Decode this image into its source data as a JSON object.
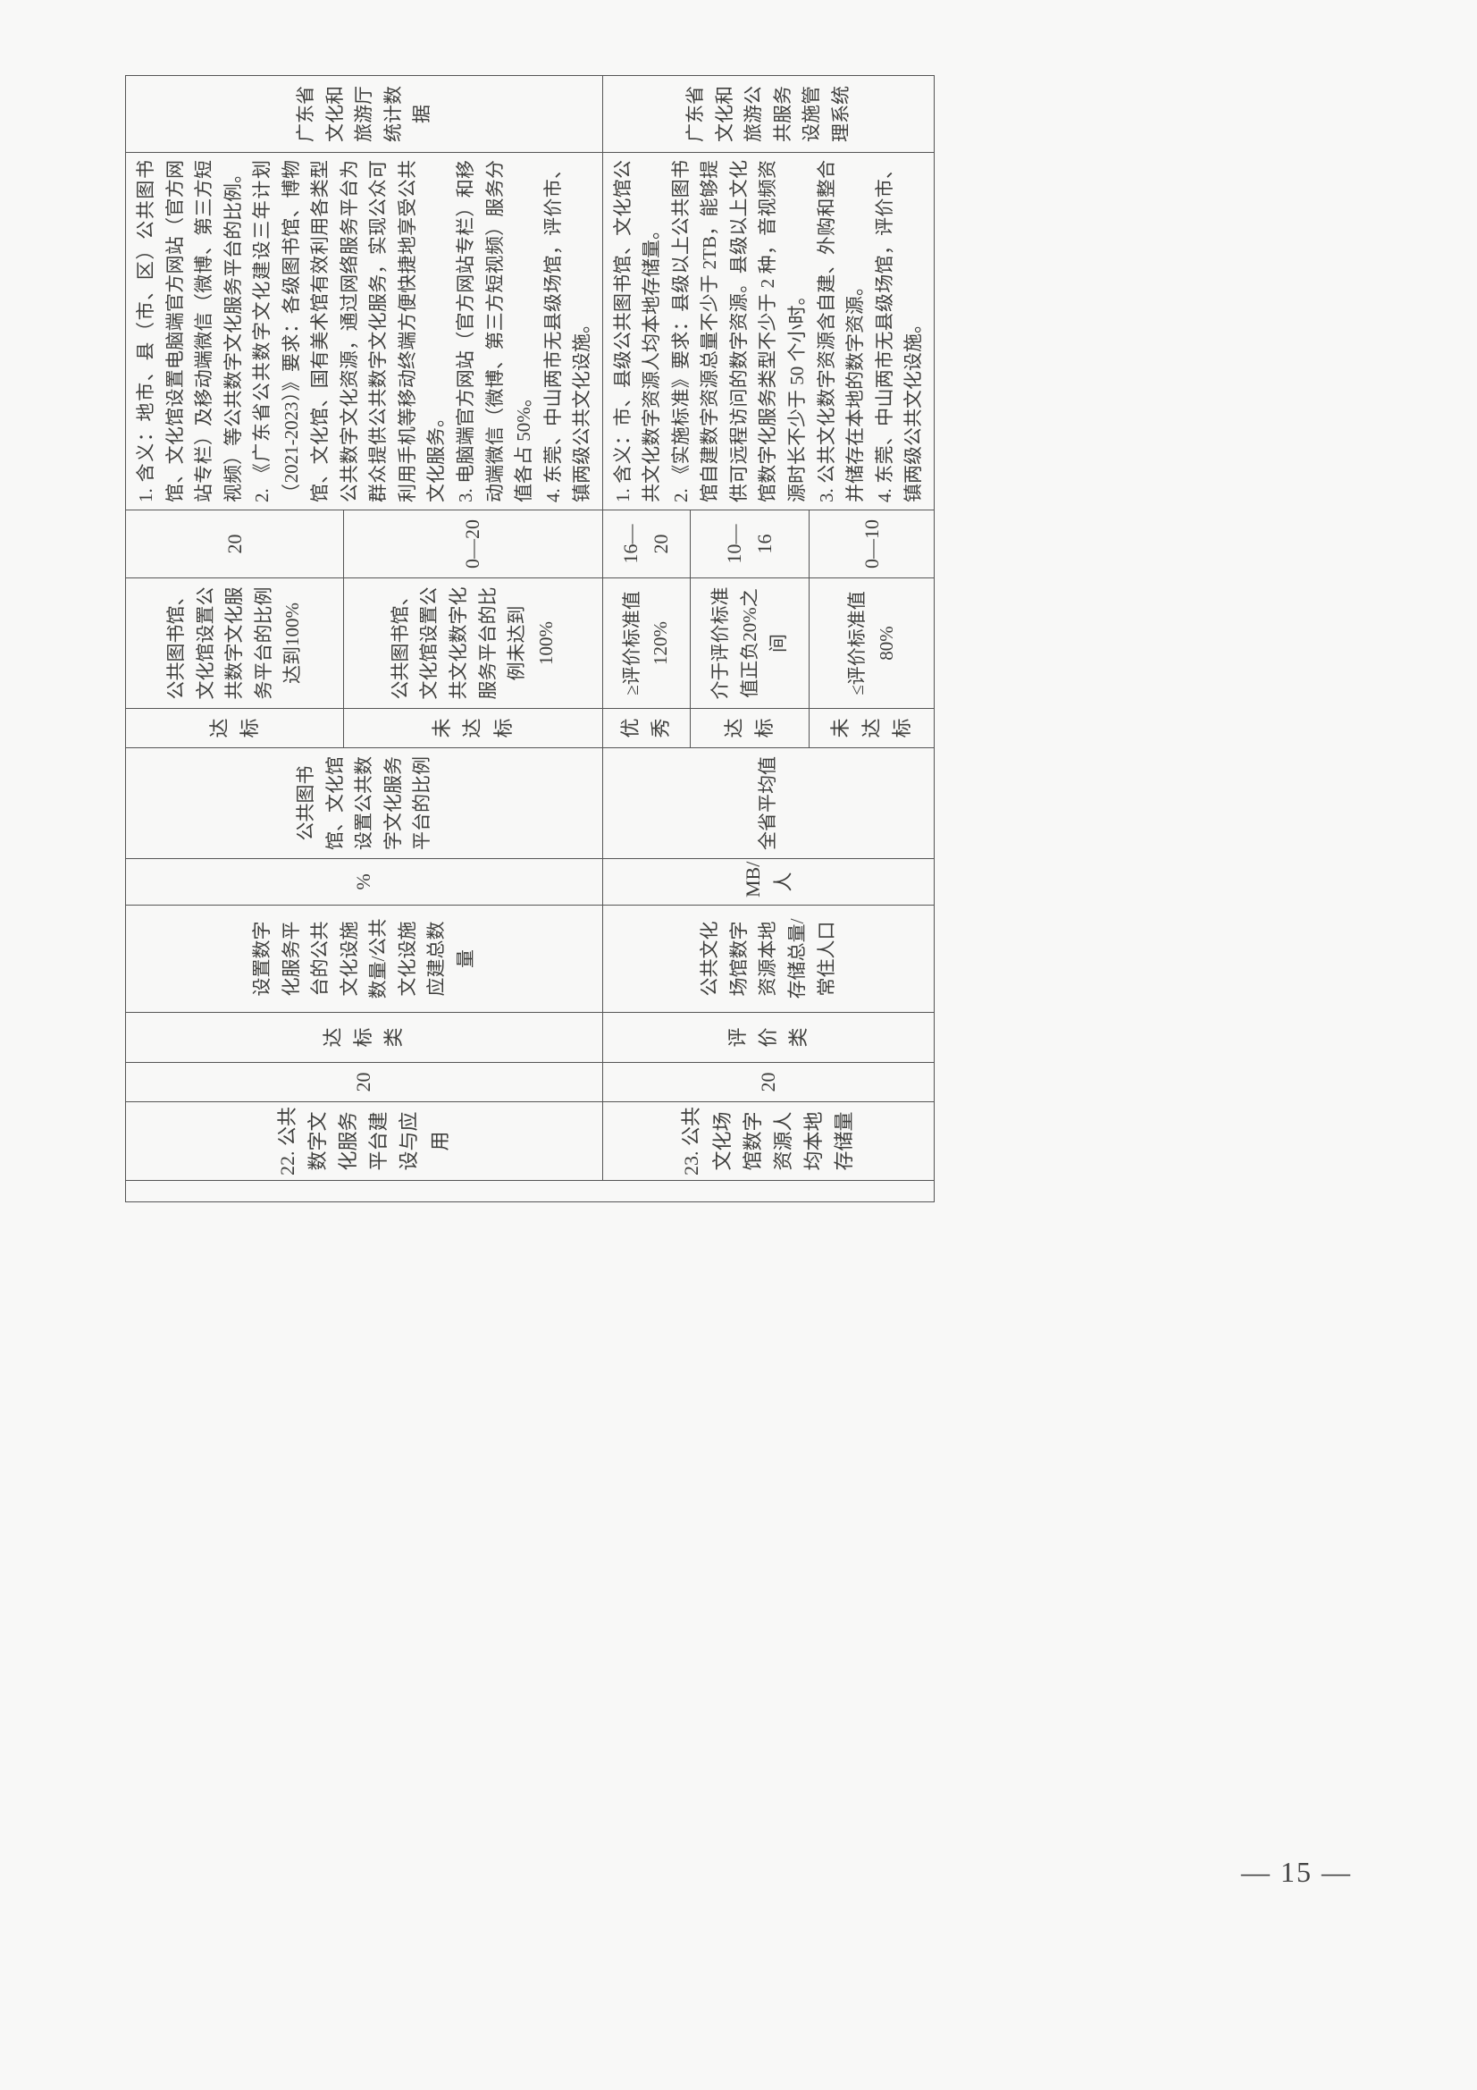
{
  "pageNumber": "— 15 —",
  "rows": {
    "r22": {
      "id": "22. 公共数字文化服务平台建设与应用",
      "weight": "20",
      "cat": "达标类",
      "formula": "设置数字化服务平台的公共文化设施数量/公共文化设施应建总数量",
      "unit": "%",
      "measure": "公共图书馆、文化馆设置公共数字文化服务平台的比例",
      "grades": {
        "g1": {
          "lvl": "达标",
          "std": "公共图书馆、文化馆设置公共数字文化服务平台的比例达到100%",
          "score": "20"
        },
        "g2": {
          "lvl": "未达标",
          "std": "公共图书馆、文化馆设置公共文化数字化服务平台的比例未达到 100%",
          "score": "0—20"
        }
      },
      "explain": "1. 含义：地市、县（市、区）公共图书馆、文化馆设置电脑端官方网站（官方网站专栏）及移动端微信（微博、第三方短视频）等公共数字文化服务平台的比例。\n2. 《广东省公共数字文化建设三年计划（2021-2023）》要求：各级图书馆、博物馆、文化馆、国有美术馆有效利用各类型公共数字文化资源，通过网络服务平台为群众提供公共数字文化服务，实现公众可利用手机等移动终端方便快捷地享受公共文化服务。\n3. 电脑端官方网站（官方网站专栏）和移动端微信（微博、第三方短视频）服务分值各占 50%。\n4. 东莞、中山两市无县级场馆，评价市、镇两级公共文化设施。",
      "source": "广东省文化和旅游厅统计数据"
    },
    "r23": {
      "id": "23. 公共文化场馆数字资源人均本地存储量",
      "weight": "20",
      "cat": "评价类",
      "formula": "公共文化场馆数字资源本地存储总量/常住人口",
      "unit": "MB/人",
      "measure": "全省平均值",
      "grades": {
        "g1": {
          "lvl": "优秀",
          "std": "≥评价标准值 120%",
          "score": "16—20"
        },
        "g2": {
          "lvl": "达标",
          "std": "介于评价标准值正负20%之间",
          "score": "10—16"
        },
        "g3": {
          "lvl": "未达标",
          "std": "≤评价标准值 80%",
          "score": "0—10"
        }
      },
      "explain": "1. 含义：市、县级公共图书馆、文化馆公共文化数字资源人均本地存储量。\n2. 《实施标准》要求：县级以上公共图书馆自建数字资源总量不少于 2TB，能够提供可远程访问的数字资源。县级以上文化馆数字化服务类型不少于 2 种，音视频资源时长不少于 50 个小时。\n3. 公共文化数字资源含自建、外购和整合并储存在本地的数字资源。\n4. 东莞、中山两市无县级场馆，评价市、镇两级公共文化设施。",
      "source": "广东省文化和旅游公共服务设施管理系统"
    }
  }
}
